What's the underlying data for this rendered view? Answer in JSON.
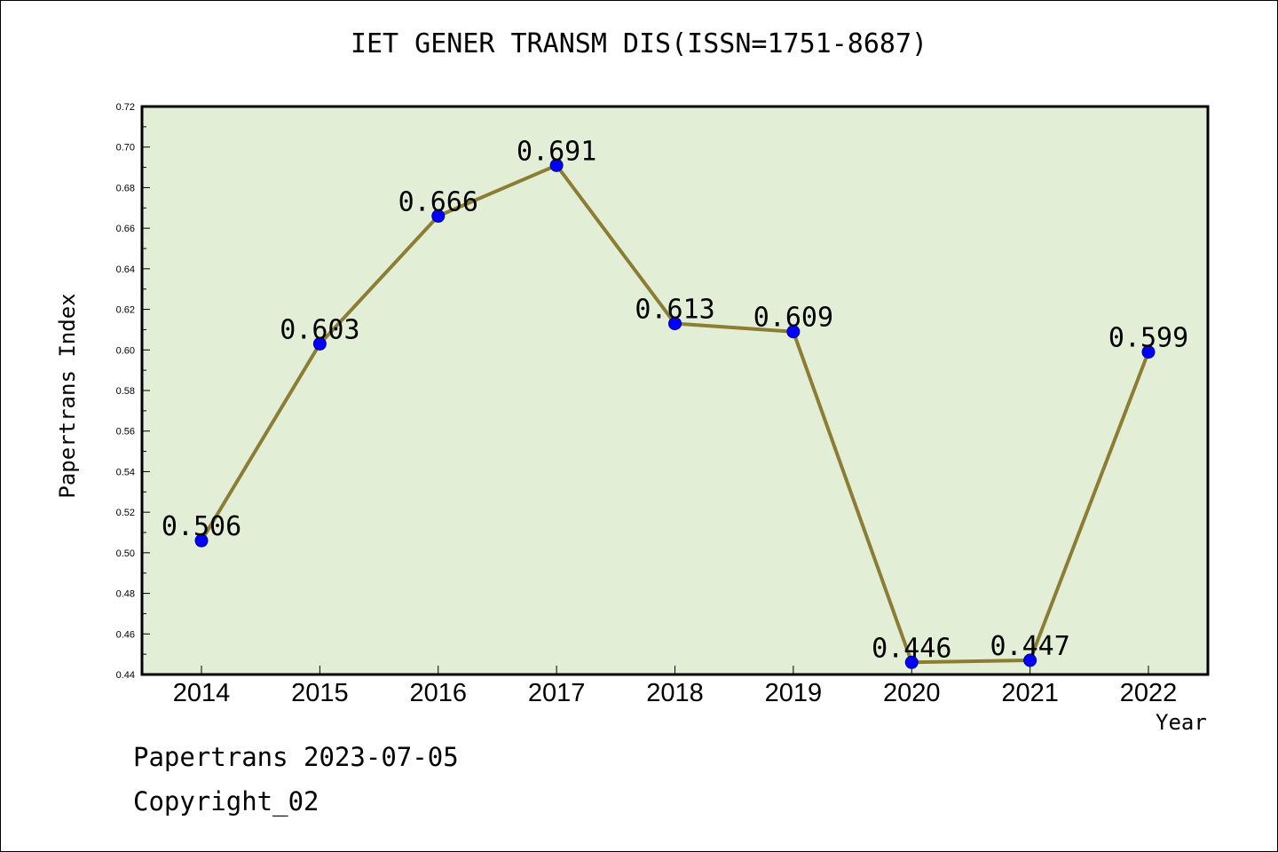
{
  "chart_data": {
    "type": "line",
    "title": "IET GENER TRANSM DIS(ISSN=1751-8687)",
    "xlabel": "Year",
    "ylabel": "Papertrans Index",
    "categories": [
      "2014",
      "2015",
      "2016",
      "2017",
      "2018",
      "2019",
      "2020",
      "2021",
      "2022"
    ],
    "values": [
      0.506,
      0.603,
      0.666,
      0.691,
      0.613,
      0.609,
      0.446,
      0.447,
      0.599
    ],
    "data_labels": [
      "0.506",
      "0.603",
      "0.666",
      "0.691",
      "0.613",
      "0.609",
      "0.446",
      "0.447",
      "0.599"
    ],
    "ylim": [
      0.44,
      0.72
    ],
    "yticks": [
      "0.44",
      "0.46",
      "0.48",
      "0.50",
      "0.52",
      "0.54",
      "0.56",
      "0.58",
      "0.60",
      "0.62",
      "0.64",
      "0.66",
      "0.68",
      "0.70",
      "0.72"
    ],
    "grid": false,
    "legend": "none",
    "colors": {
      "plot_background": "#e2efd6",
      "line": "#8b7d34",
      "marker": "#0000ff"
    }
  },
  "footer": {
    "line1": "Papertrans 2023-07-05",
    "line2": "Copyright_02"
  }
}
